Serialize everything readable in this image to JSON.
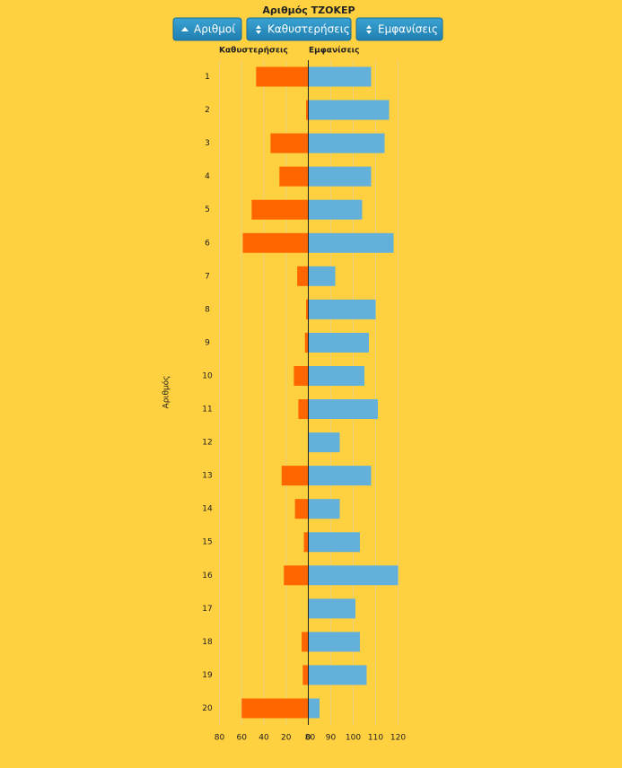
{
  "chart_data": {
    "type": "butterfly",
    "title": "Αριθμός ΤΖΟΚΕΡ",
    "controls": [
      "Αριθμοί",
      "Καθυστερήσεις",
      "Εμφανίσεις"
    ],
    "y_label": "Αριθμός",
    "categories": [
      "1",
      "2",
      "3",
      "4",
      "5",
      "6",
      "7",
      "8",
      "9",
      "10",
      "11",
      "12",
      "13",
      "14",
      "15",
      "16",
      "17",
      "18",
      "19",
      "20"
    ],
    "series": [
      {
        "name": "Καθυστερήσεις",
        "color": "#ff6600",
        "axis": "x",
        "values": [
          47,
          2,
          34,
          26,
          51,
          59,
          10,
          2,
          3,
          13,
          9,
          0,
          24,
          12,
          4,
          22,
          0,
          6,
          5,
          60
        ]
      },
      {
        "name": "Εμφανίσεις",
        "color": "#63b1db",
        "axis": "x2",
        "values": [
          108,
          116,
          114,
          108,
          104,
          118,
          92,
          110,
          107,
          105,
          111,
          94,
          108,
          94,
          103,
          120,
          101,
          103,
          106,
          85
        ]
      }
    ],
    "xlim": [
      0,
      80
    ],
    "xticks": [
      0,
      20,
      40,
      60,
      80
    ],
    "x2lim": [
      80,
      120
    ],
    "x2ticks": [
      80,
      90,
      100,
      110,
      120
    ],
    "grid": true
  }
}
